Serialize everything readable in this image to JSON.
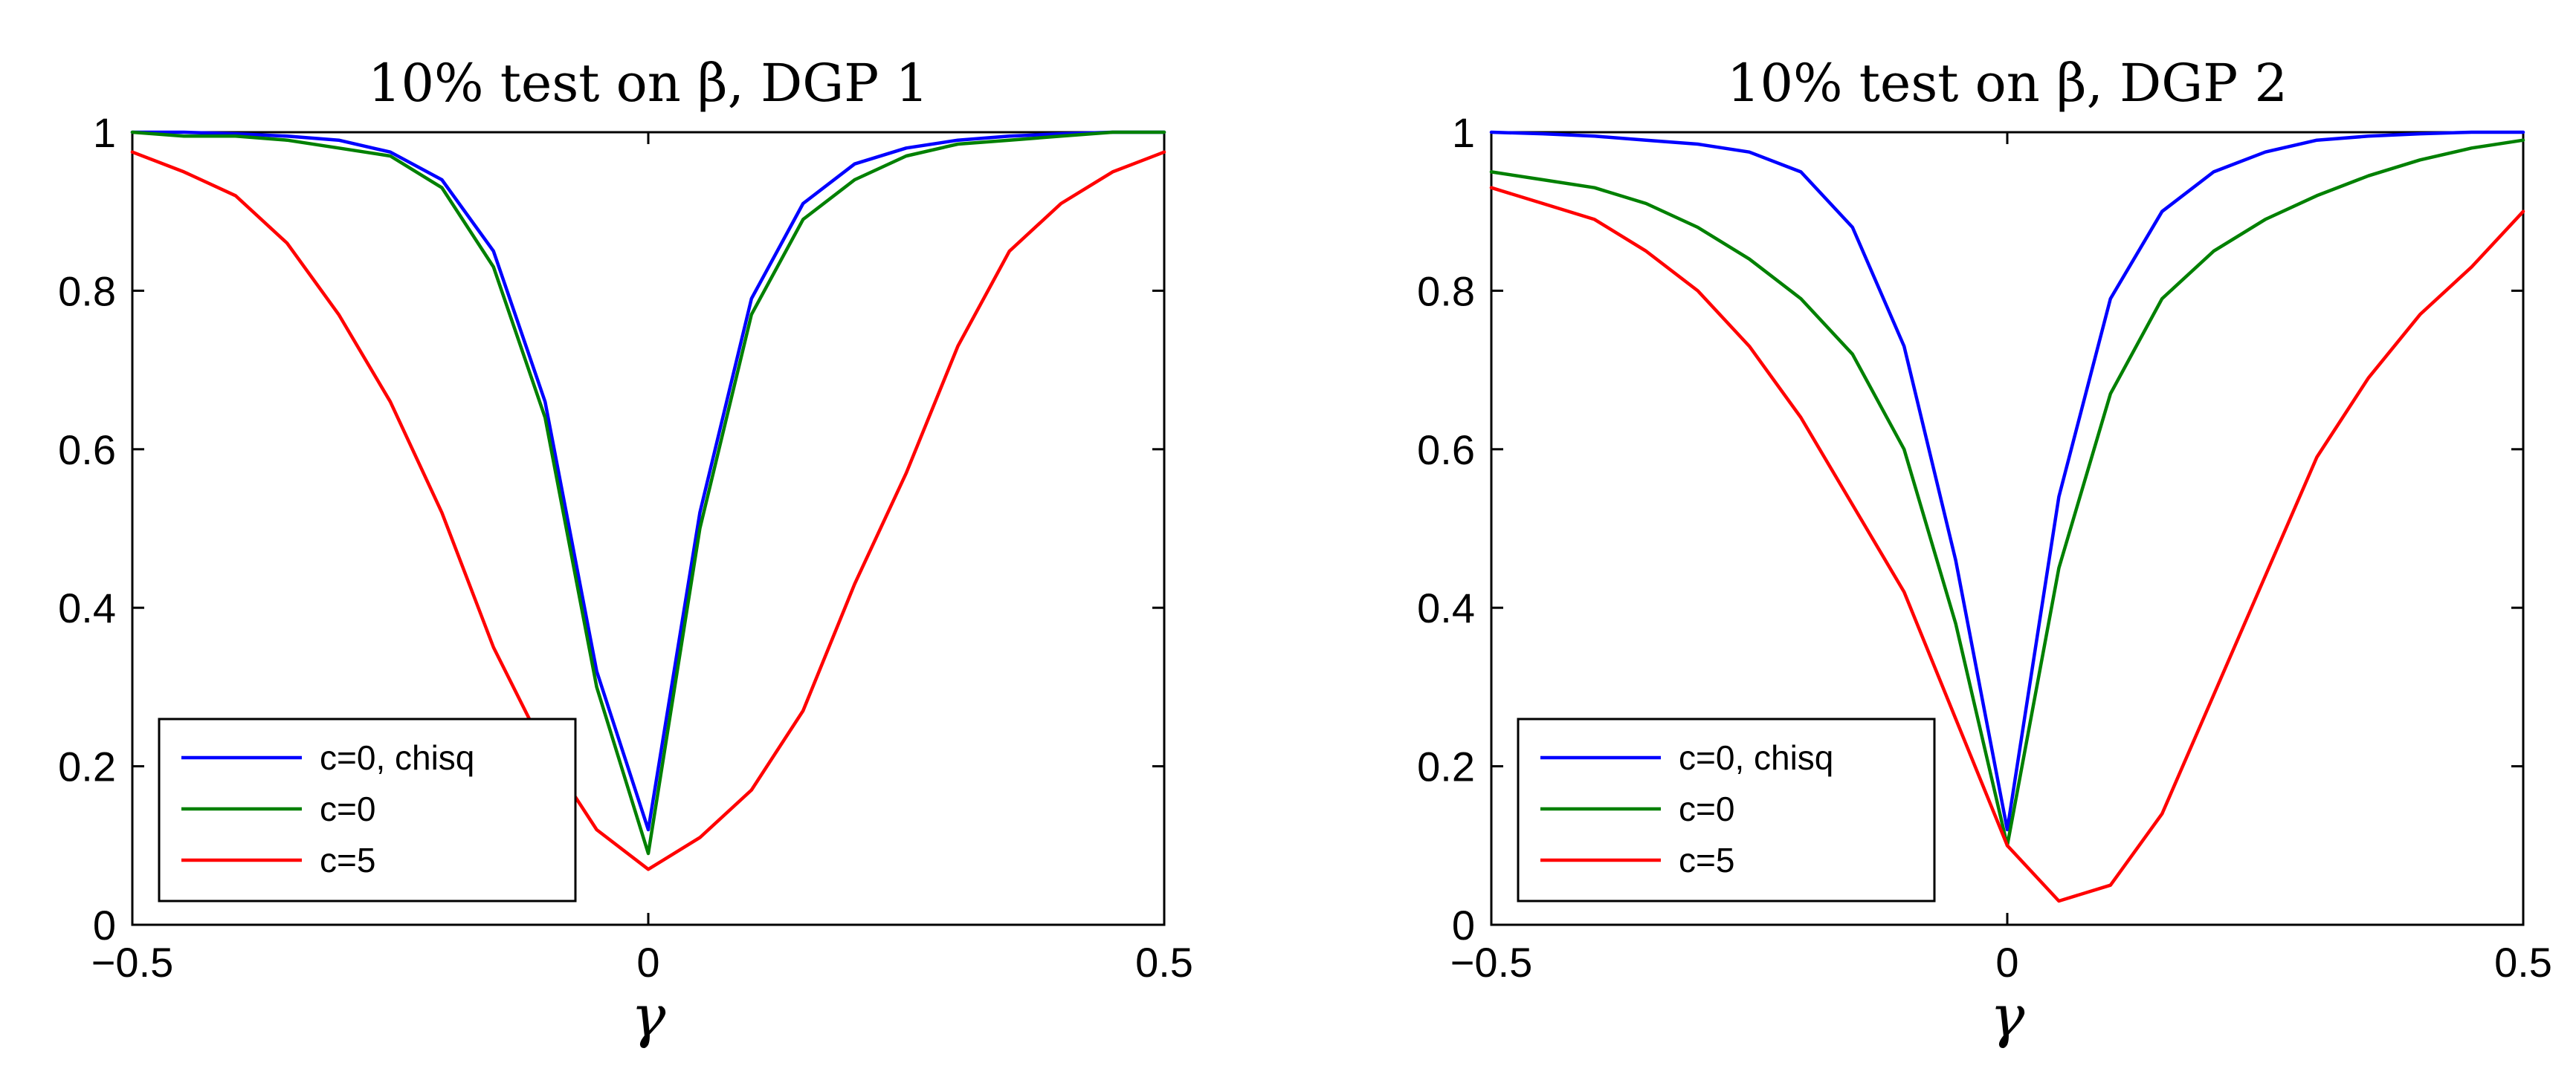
{
  "chart_data": [
    {
      "type": "line",
      "title": "10% test on β, DGP 1",
      "xlabel": "γ",
      "ylabel": "",
      "xlim": [
        -0.5,
        0.5
      ],
      "ylim": [
        0,
        1
      ],
      "xticks": [
        "−0.5",
        "0",
        "0.5"
      ],
      "yticks": [
        "0",
        "0.2",
        "0.4",
        "0.6",
        "0.8",
        "1"
      ],
      "legend_position": "bottom-left",
      "x": [
        -0.5,
        -0.45,
        -0.4,
        -0.35,
        -0.3,
        -0.25,
        -0.2,
        -0.15,
        -0.1,
        -0.05,
        0,
        0.05,
        0.1,
        0.15,
        0.2,
        0.25,
        0.3,
        0.35,
        0.4,
        0.45,
        0.5
      ],
      "series": [
        {
          "name": "c=0, chisq",
          "color": "#0000ff",
          "values": [
            1.0,
            1.0,
            0.998,
            0.995,
            0.99,
            0.975,
            0.94,
            0.85,
            0.66,
            0.32,
            0.12,
            0.52,
            0.79,
            0.91,
            0.96,
            0.98,
            0.99,
            0.995,
            0.998,
            1.0,
            1.0
          ]
        },
        {
          "name": "c=0",
          "color": "#008000",
          "values": [
            1.0,
            0.995,
            0.995,
            0.99,
            0.98,
            0.97,
            0.93,
            0.83,
            0.64,
            0.3,
            0.09,
            0.5,
            0.77,
            0.89,
            0.94,
            0.97,
            0.985,
            0.99,
            0.995,
            1.0,
            1.0
          ]
        },
        {
          "name": "c=5",
          "color": "#ff0000",
          "values": [
            0.975,
            0.95,
            0.92,
            0.86,
            0.77,
            0.66,
            0.52,
            0.35,
            0.22,
            0.12,
            0.07,
            0.11,
            0.17,
            0.27,
            0.43,
            0.57,
            0.73,
            0.85,
            0.91,
            0.95,
            0.975
          ]
        }
      ]
    },
    {
      "type": "line",
      "title": "10% test on β, DGP 2",
      "xlabel": "γ",
      "ylabel": "",
      "xlim": [
        -0.5,
        0.5
      ],
      "ylim": [
        0,
        1
      ],
      "xticks": [
        "−0.5",
        "0",
        "0.5"
      ],
      "yticks": [
        "0",
        "0.2",
        "0.4",
        "0.6",
        "0.8",
        "1"
      ],
      "legend_position": "bottom-left",
      "x": [
        -0.5,
        -0.45,
        -0.4,
        -0.35,
        -0.3,
        -0.25,
        -0.2,
        -0.15,
        -0.1,
        -0.05,
        0,
        0.05,
        0.1,
        0.15,
        0.2,
        0.25,
        0.3,
        0.35,
        0.4,
        0.45,
        0.5
      ],
      "series": [
        {
          "name": "c=0, chisq",
          "color": "#0000ff",
          "values": [
            1.0,
            0.998,
            0.995,
            0.99,
            0.985,
            0.975,
            0.95,
            0.88,
            0.73,
            0.46,
            0.12,
            0.54,
            0.79,
            0.9,
            0.95,
            0.975,
            0.99,
            0.995,
            0.998,
            1.0,
            1.0
          ]
        },
        {
          "name": "c=0",
          "color": "#008000",
          "values": [
            0.95,
            0.94,
            0.93,
            0.91,
            0.88,
            0.84,
            0.79,
            0.72,
            0.6,
            0.38,
            0.1,
            0.45,
            0.67,
            0.79,
            0.85,
            0.89,
            0.92,
            0.945,
            0.965,
            0.98,
            0.99
          ]
        },
        {
          "name": "c=5",
          "color": "#ff0000",
          "values": [
            0.93,
            0.91,
            0.89,
            0.85,
            0.8,
            0.73,
            0.64,
            0.53,
            0.42,
            0.26,
            0.1,
            0.03,
            0.05,
            0.14,
            0.29,
            0.44,
            0.59,
            0.69,
            0.77,
            0.83,
            0.9
          ]
        }
      ]
    }
  ]
}
